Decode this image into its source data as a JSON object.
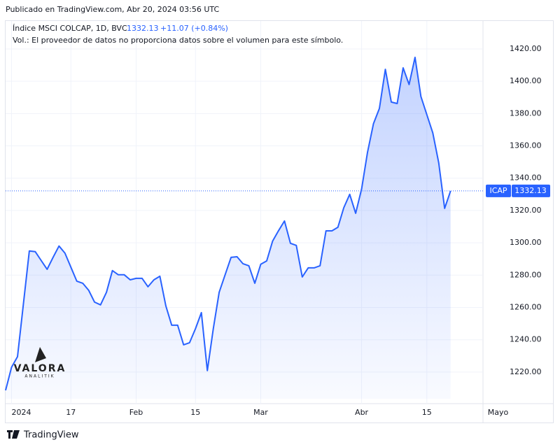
{
  "header": {
    "published": "Publicado en TradingView.com, Abr 20, 2024 03:56 UTC",
    "symbol": "Índice MSCI COLCAP, 1D, BVC",
    "change": "+11.07 (+0.84%)",
    "volume_note": "Vol.: El proveedor de datos no proporciona datos sobre el volumen para este símbolo."
  },
  "watermark": {
    "name": "VALORA",
    "sub": "ANALITIK"
  },
  "footer": {
    "brand": "TradingView"
  },
  "chart_data": {
    "type": "area",
    "series": [
      {
        "name": "ICAP",
        "color": "#2962ff",
        "x": [
          0,
          1,
          2,
          3,
          4,
          5,
          6,
          7,
          8,
          9,
          10,
          11,
          12,
          13,
          14,
          15,
          16,
          17,
          18,
          19,
          20,
          21,
          22,
          23,
          24,
          25,
          26,
          27,
          28,
          29,
          30,
          31,
          32,
          33,
          34,
          35,
          36,
          37,
          38,
          39,
          40,
          41,
          42,
          43,
          44,
          45,
          46,
          47,
          48,
          49,
          50,
          51,
          52,
          53,
          54,
          55,
          56,
          57,
          58,
          59,
          60,
          61,
          62,
          63,
          64,
          65,
          66,
          67,
          68,
          69,
          70,
          71,
          72,
          73,
          74,
          75
        ],
        "values": [
          1208.7,
          1223,
          1229.5,
          1262,
          1295,
          1294.5,
          1289,
          1283.6,
          1291,
          1298,
          1293.6,
          1285,
          1276.3,
          1275,
          1270.6,
          1263.3,
          1261.6,
          1269.4,
          1282.8,
          1280.2,
          1280.2,
          1277.1,
          1278,
          1278,
          1272.8,
          1277.1,
          1279.3,
          1261,
          1249,
          1249,
          1236.9,
          1238.2,
          1246.8,
          1256.8,
          1220.9,
          1246.8,
          1269.4,
          1280.2,
          1291,
          1291.4,
          1287.1,
          1285.8,
          1275,
          1286.7,
          1288.8,
          1301,
          1307.5,
          1313.5,
          1299.7,
          1298.4,
          1278.9,
          1284.5,
          1284.5,
          1285.8,
          1307.4,
          1307.4,
          1309.6,
          1321.7,
          1330,
          1318.3,
          1333.4,
          1356,
          1373.7,
          1383.2,
          1407.4,
          1387.1,
          1386.2,
          1408.3,
          1398,
          1414.8,
          1390.6,
          1379.3,
          1368,
          1349.4,
          1321.3,
          1332.13
        ]
      }
    ],
    "xlim": [
      0,
      84
    ],
    "xticks": [
      {
        "value": 1,
        "label": "2024"
      },
      {
        "value": 11,
        "label": "17"
      },
      {
        "value": 22,
        "label": "Feb"
      },
      {
        "value": 32,
        "label": "15"
      },
      {
        "value": 43,
        "label": "Mar"
      },
      {
        "value": 60,
        "label": "Abr"
      },
      {
        "value": 71,
        "label": "15"
      },
      {
        "value": 83,
        "label": "Mayo"
      }
    ],
    "ylim": [
      1203.5,
      1437.3
    ],
    "yticks": [
      {
        "value": 1220,
        "label": "1220.00"
      },
      {
        "value": 1240,
        "label": "1240.00"
      },
      {
        "value": 1260,
        "label": "1260.00"
      },
      {
        "value": 1280,
        "label": "1280.00"
      },
      {
        "value": 1300,
        "label": "1300.00"
      },
      {
        "value": 1320,
        "label": "1320.00"
      },
      {
        "value": 1340,
        "label": "1340.00"
      },
      {
        "value": 1360,
        "label": "1360.00"
      },
      {
        "value": 1380,
        "label": "1380.00"
      },
      {
        "value": 1400,
        "label": "1400.00"
      },
      {
        "value": 1420,
        "label": "1420.00"
      }
    ],
    "grid": true
  }
}
